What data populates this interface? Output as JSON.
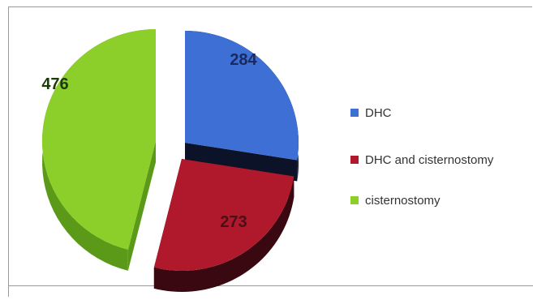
{
  "chart_data": {
    "type": "pie",
    "title": "",
    "style": "3d-exploded",
    "legend": "right",
    "categories": [
      "DHC",
      "DHC and cisternostomy",
      "cisternostomy"
    ],
    "values": [
      284,
      273,
      476
    ],
    "colors": [
      "#3e6fd4",
      "#b0182c",
      "#8ccf2a"
    ],
    "dark_colors": [
      "#0c1228",
      "#3a0810",
      "#5a9a18"
    ],
    "labels": [
      "284",
      "273",
      "476"
    ],
    "label_colors": [
      "#1a2a60",
      "#4a1018",
      "#1a3a08"
    ]
  }
}
